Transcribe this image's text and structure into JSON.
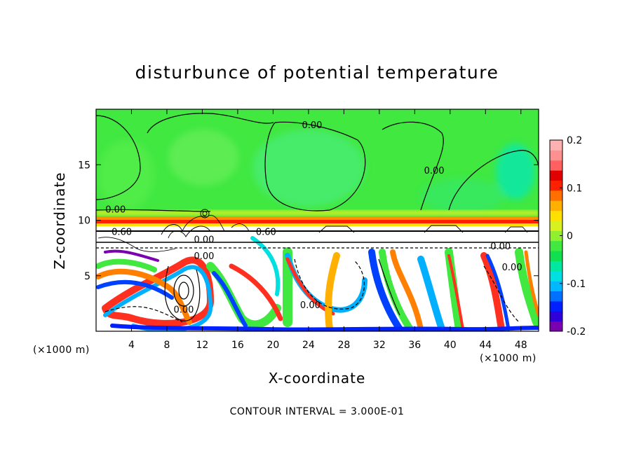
{
  "chart_data": {
    "type": "heatmap",
    "title": "disturbunce of potential temperature",
    "xlabel": "X-coordinate",
    "ylabel": "Z-coordinate",
    "x_unit": "(×1000 m)",
    "y_unit": "(×1000 m)",
    "xlim": [
      0,
      50
    ],
    "ylim": [
      0,
      20
    ],
    "x_ticks": [
      4,
      8,
      12,
      16,
      20,
      24,
      28,
      32,
      36,
      40,
      44,
      48
    ],
    "y_ticks": [
      5,
      10,
      15
    ],
    "colorbar": {
      "range": [
        -0.2,
        0.2
      ],
      "tick_labels": [
        "0.2",
        "0.1",
        "0",
        "-0.1",
        "-0.2"
      ],
      "tick_values": [
        0.2,
        0.1,
        0,
        -0.1,
        -0.2
      ],
      "colors": [
        "#7b00b0",
        "#3000d8",
        "#0020ff",
        "#0070ff",
        "#00b8ff",
        "#00e0e0",
        "#00e8a0",
        "#10e050",
        "#40e840",
        "#90f030",
        "#d8f020",
        "#ffe000",
        "#ffb000",
        "#ff7000",
        "#ff2000",
        "#e00000",
        "#ff6060",
        "#ff9090",
        "#ffb0b0"
      ]
    },
    "contour_labels": [
      {
        "text": "0.00",
        "x": 24.4,
        "z": 18.6
      },
      {
        "text": "0.00",
        "x": 38.2,
        "z": 14.5
      },
      {
        "text": "0.00",
        "x": 2.2,
        "z": 11.0
      },
      {
        "text": "0.60",
        "x": 2.9,
        "z": 9.0
      },
      {
        "text": "0.60",
        "x": 19.2,
        "z": 9.0
      },
      {
        "text": "0.00",
        "x": 12.2,
        "z": 8.3
      },
      {
        "text": "0.00",
        "x": 12.2,
        "z": 6.8
      },
      {
        "text": "0.00",
        "x": 45.7,
        "z": 7.7
      },
      {
        "text": "0.00",
        "x": 47.0,
        "z": 5.8
      },
      {
        "text": "0.00",
        "x": 9.9,
        "z": 2.0
      },
      {
        "text": "0.00",
        "x": 24.2,
        "z": 2.4
      }
    ],
    "contour_interval_text": "CONTOUR INTERVAL = 3.000E-01"
  }
}
